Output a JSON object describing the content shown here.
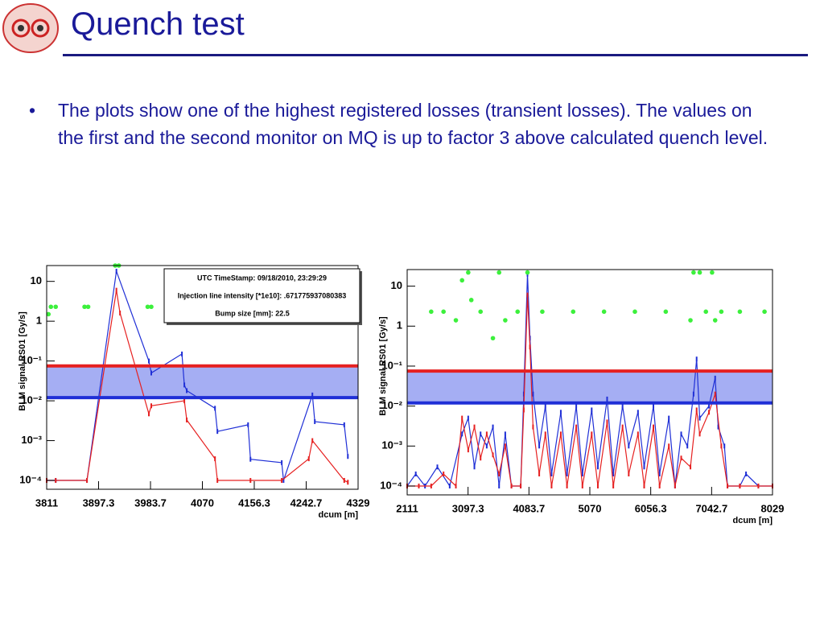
{
  "header": {
    "title": "Quench test"
  },
  "bullets": [
    "The plots show one of the highest registered losses (transient losses). The values on the first and the second monitor on MQ is up to factor 3 above calculated quench level."
  ],
  "chart_data": [
    {
      "type": "line",
      "log_y": true,
      "ylabel": "BLM signal RS01 [Gy/s]",
      "xlabel": "dcum [m]",
      "xlim": [
        3811,
        4329
      ],
      "xticks": [
        3811,
        3897.3,
        3983.7,
        4070,
        4156.3,
        4242.7,
        4329
      ],
      "ylim": [
        6e-05,
        25
      ],
      "yticks": [
        {
          "value": 0.0001,
          "label": "10⁻⁴"
        },
        {
          "value": 0.001,
          "label": "10⁻³"
        },
        {
          "value": 0.01,
          "label": "10⁻²"
        },
        {
          "value": 0.1,
          "label": "10⁻¹"
        },
        1,
        10
      ],
      "band_fill": "#9ba5f2",
      "annotations": [
        "UTC TimeStamp: 09/18/2010, 23:29:29",
        "Injection line intensity [*1e10]: .671775937080383",
        "Bump size [mm]:     22.5"
      ],
      "series": [
        {
          "color": "#1f2fd6",
          "style": "line",
          "x": [
            3811,
            3826,
            3878,
            3927,
            3981,
            3985,
            4036,
            4040,
            4044,
            4091,
            4095,
            4146,
            4150,
            4202,
            4205,
            4253,
            4257,
            4306,
            4312
          ],
          "values": [
            0.0001,
            0.0001,
            0.0001,
            18,
            0.1,
            0.05,
            0.15,
            0.025,
            0.018,
            0.0065,
            0.0017,
            0.0025,
            0.00034,
            0.00028,
            0.0001,
            0.014,
            0.003,
            0.0025,
            0.0004
          ]
        },
        {
          "color": "#e62020",
          "style": "line",
          "x": [
            3811,
            3826,
            3878,
            3927,
            3933,
            3981,
            3985,
            4040,
            4044,
            4091,
            4095,
            4150,
            4202,
            4247,
            4253,
            4306,
            4312
          ],
          "values": [
            0.0001,
            0.0001,
            0.0001,
            6,
            1.6,
            0.0047,
            0.0075,
            0.01,
            0.0033,
            0.00035,
            0.0001,
            0.0001,
            0.0001,
            0.00035,
            0.001,
            0.0001,
            9e-05
          ]
        },
        {
          "color": "#3cf03c",
          "style": "markers",
          "x": [
            3814,
            3818,
            3826,
            3874,
            3880,
            3925,
            3931,
            3979,
            3985,
            4036,
            4042,
            4090,
            4096,
            4144,
            4150,
            4198,
            4204,
            4252,
            4258,
            4304,
            4310
          ],
          "values": [
            1.5,
            2.3,
            2.3,
            2.3,
            2.3,
            25,
            25,
            2.3,
            2.3,
            2.3,
            2.3,
            2.3,
            2.3,
            2.3,
            2.3,
            2.3,
            2.3,
            2.3,
            2.3,
            2.3,
            2.3
          ]
        },
        {
          "color": "#e62020",
          "style": "band-edge",
          "x": [
            3811,
            4329
          ],
          "values": [
            0.075,
            0.075
          ]
        },
        {
          "color": "#1f2fd6",
          "style": "band-edge",
          "x": [
            3811,
            4329
          ],
          "values": [
            0.012,
            0.012
          ]
        }
      ]
    },
    {
      "type": "line",
      "log_y": true,
      "ylabel": "BLM signal RS01 [Gy/s]",
      "xlabel": "dcum [m]",
      "xlim": [
        2111,
        8029
      ],
      "xticks": [
        2111,
        3097.3,
        4083.7,
        5070,
        6056.3,
        7042.7,
        8029
      ],
      "ylim": [
        6e-05,
        26
      ],
      "yticks": [
        {
          "value": 0.0001,
          "label": "10⁻⁴"
        },
        {
          "value": 0.001,
          "label": "10⁻³"
        },
        {
          "value": 0.01,
          "label": "10⁻²"
        },
        {
          "value": 0.1,
          "label": "10⁻¹"
        },
        1,
        10
      ],
      "band_fill": "#9ba5f2",
      "series": [
        {
          "color": "#1f2fd6",
          "style": "line",
          "x": [
            2111,
            2250,
            2400,
            2600,
            2800,
            3000,
            3100,
            3200,
            3300,
            3400,
            3500,
            3600,
            3700,
            3800,
            3950,
            4000,
            4060,
            4100,
            4150,
            4250,
            4350,
            4450,
            4600,
            4700,
            4850,
            4950,
            5100,
            5200,
            5350,
            5450,
            5600,
            5700,
            5850,
            5950,
            6100,
            6200,
            6350,
            6450,
            6550,
            6650,
            6750,
            6800,
            6850,
            7000,
            7100,
            7150,
            7250,
            7300,
            7500,
            7600,
            7800,
            8029
          ],
          "values": [
            0.0001,
            0.0002,
            0.0001,
            0.0003,
            0.0001,
            0.002,
            0.005,
            0.0003,
            0.002,
            0.001,
            0.003,
            0.0001,
            0.002,
            0.0001,
            0.0001,
            0.02,
            20,
            0.5,
            0.02,
            0.001,
            0.01,
            0.0002,
            0.007,
            0.0002,
            0.01,
            0.0002,
            0.008,
            0.0003,
            0.015,
            0.0002,
            0.01,
            0.001,
            0.007,
            0.0003,
            0.01,
            0.0002,
            0.005,
            0.0001,
            0.002,
            0.001,
            0.02,
            0.15,
            0.005,
            0.01,
            0.05,
            0.003,
            0.001,
            0.0001,
            0.0001,
            0.0002,
            0.0001,
            0.0001
          ]
        },
        {
          "color": "#e62020",
          "style": "line",
          "x": [
            2111,
            2300,
            2500,
            2700,
            2900,
            3000,
            3100,
            3200,
            3300,
            3400,
            3500,
            3600,
            3700,
            3800,
            3950,
            4000,
            4060,
            4100,
            4150,
            4250,
            4350,
            4450,
            4600,
            4700,
            4850,
            4950,
            5100,
            5200,
            5350,
            5450,
            5600,
            5700,
            5850,
            5950,
            6100,
            6200,
            6350,
            6450,
            6550,
            6700,
            6800,
            6850,
            7000,
            7100,
            7200,
            7300,
            7500,
            7800,
            8029
          ],
          "values": [
            0.0001,
            0.0001,
            0.0001,
            0.0002,
            0.0001,
            0.005,
            0.0008,
            0.003,
            0.0005,
            0.002,
            0.0006,
            0.0002,
            0.001,
            0.0001,
            0.0001,
            0.008,
            6,
            0.3,
            0.003,
            0.0002,
            0.002,
            0.0001,
            0.002,
            0.0001,
            0.003,
            0.0001,
            0.002,
            0.0001,
            0.004,
            0.0001,
            0.003,
            0.0002,
            0.002,
            0.0001,
            0.003,
            0.0001,
            0.001,
            0.0001,
            0.0005,
            0.0003,
            0.008,
            0.002,
            0.007,
            0.02,
            0.001,
            0.0001,
            0.0001,
            0.0001,
            0.0001
          ]
        },
        {
          "color": "#3cf03c",
          "style": "markers",
          "x": [
            2500,
            2700,
            2900,
            3000,
            3100,
            3150,
            3300,
            3500,
            3600,
            3700,
            3900,
            4060,
            4300,
            4800,
            5300,
            5800,
            6300,
            6700,
            6750,
            6850,
            6950,
            7050,
            7100,
            7200,
            7500,
            7900
          ],
          "values": [
            2.3,
            2.3,
            1.4,
            14,
            22,
            4.5,
            2.3,
            0.5,
            22,
            1.4,
            2.3,
            22,
            2.3,
            2.3,
            2.3,
            2.3,
            2.3,
            1.4,
            22,
            22,
            2.3,
            22,
            1.4,
            2.3,
            2.3,
            2.3
          ]
        },
        {
          "color": "#e62020",
          "style": "band-edge",
          "x": [
            2111,
            8029
          ],
          "values": [
            0.075,
            0.075
          ]
        },
        {
          "color": "#1f2fd6",
          "style": "band-edge",
          "x": [
            2111,
            8029
          ],
          "values": [
            0.012,
            0.012
          ]
        }
      ]
    }
  ]
}
